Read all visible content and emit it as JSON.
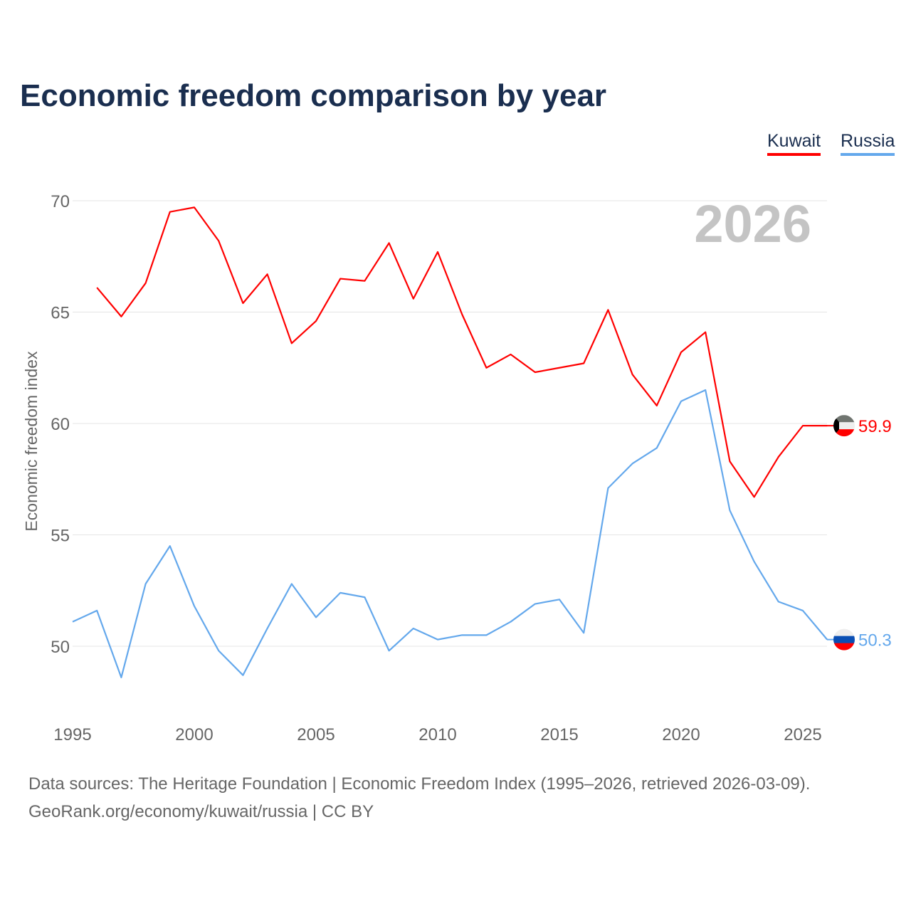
{
  "title": "Economic freedom comparison by year",
  "chart_data": {
    "type": "line",
    "title": "Economic freedom comparison by year",
    "xlabel": "",
    "ylabel": "Economic freedom index",
    "xlim": [
      1995,
      2026
    ],
    "ylim": [
      47,
      70.5
    ],
    "x_ticks": [
      1995,
      2000,
      2005,
      2010,
      2015,
      2020,
      2025
    ],
    "y_ticks": [
      50,
      55,
      60,
      65,
      70
    ],
    "grid": true,
    "legend_position": "top-right",
    "year_label": "2026",
    "series": [
      {
        "name": "Kuwait",
        "color": "#ff0000",
        "end_label": "59.9",
        "x": [
          1996,
          1997,
          1998,
          1999,
          2000,
          2001,
          2002,
          2003,
          2004,
          2005,
          2006,
          2007,
          2008,
          2009,
          2010,
          2011,
          2012,
          2013,
          2014,
          2015,
          2016,
          2017,
          2018,
          2019,
          2020,
          2021,
          2022,
          2023,
          2024,
          2025,
          2026
        ],
        "values": [
          66.1,
          64.8,
          66.3,
          69.5,
          69.7,
          68.2,
          65.4,
          66.7,
          63.6,
          64.6,
          66.5,
          66.4,
          68.1,
          65.6,
          67.7,
          64.9,
          62.5,
          63.1,
          62.3,
          62.5,
          62.7,
          65.1,
          62.2,
          60.8,
          63.2,
          64.1,
          58.3,
          56.7,
          58.5,
          59.9,
          59.9
        ]
      },
      {
        "name": "Russia",
        "color": "#64a8ec",
        "end_label": "50.3",
        "x": [
          1995,
          1996,
          1997,
          1998,
          1999,
          2000,
          2001,
          2002,
          2003,
          2004,
          2005,
          2006,
          2007,
          2008,
          2009,
          2010,
          2011,
          2012,
          2013,
          2014,
          2015,
          2016,
          2017,
          2018,
          2019,
          2020,
          2021,
          2022,
          2023,
          2024,
          2025,
          2026
        ],
        "values": [
          51.1,
          51.6,
          48.6,
          52.8,
          54.5,
          51.8,
          49.8,
          48.7,
          50.8,
          52.8,
          51.3,
          52.4,
          52.2,
          49.8,
          50.8,
          50.3,
          50.5,
          50.5,
          51.1,
          51.9,
          52.1,
          50.6,
          57.1,
          58.2,
          58.9,
          61.0,
          61.5,
          56.1,
          53.8,
          52.0,
          51.6,
          50.3
        ]
      }
    ]
  },
  "source_line1": "Data sources: The Heritage Foundation | Economic Freedom Index (1995–2026, retrieved 2026-03-09).",
  "source_line2": "GeoRank.org/economy/kuwait/russia | CC BY"
}
